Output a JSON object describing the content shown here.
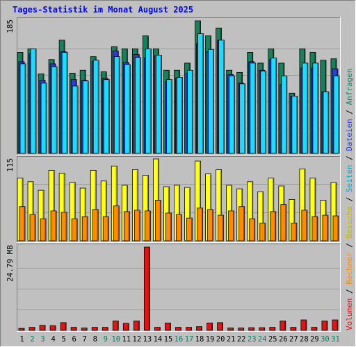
{
  "title": "Tages-Statistik im Monat August 2025",
  "colors": {
    "background": "#c0c0c0",
    "anfragen": "#1b7f5b",
    "dateien": "#2a3fd6",
    "seiten": "#22d9ff",
    "besuche": "#ffff22",
    "rechner": "#ff8c00",
    "volumen": "#e01515"
  },
  "chart_data": [
    {
      "type": "bar",
      "name": "top",
      "ymax_label": "185",
      "ylim": [
        0,
        185
      ],
      "categories": [
        "1",
        "2",
        "3",
        "4",
        "5",
        "6",
        "7",
        "8",
        "9",
        "10",
        "11",
        "12",
        "13",
        "14",
        "15",
        "16",
        "17",
        "18",
        "19",
        "20",
        "21",
        "22",
        "23",
        "24",
        "25",
        "26",
        "27",
        "28",
        "29",
        "30",
        "31"
      ],
      "weekend_days": [
        "2",
        "3",
        "9",
        "10",
        "16",
        "17",
        "23",
        "24",
        "30",
        "31"
      ],
      "series": [
        {
          "name": "Anfragen",
          "values": [
            141,
            146,
            111,
            131,
            158,
            112,
            116,
            135,
            114,
            149,
            146,
            146,
            164,
            146,
            116,
            116,
            126,
            185,
            164,
            175,
            116,
            113,
            141,
            126,
            146,
            126,
            84,
            146,
            141,
            130,
            132
          ]
        },
        {
          "name": "Dateien",
          "values": [
            128,
            139,
            102,
            125,
            142,
            103,
            102,
            128,
            105,
            143,
            127,
            138,
            133,
            136,
            100,
            105,
            112,
            153,
            142,
            158,
            110,
            98,
            128,
            116,
            131,
            96,
            80,
            119,
            119,
            86,
            118
          ]
        },
        {
          "name": "Seiten",
          "values": [
            125,
            146,
            98,
            121,
            141,
            94,
            101,
            130,
            103,
            135,
            124,
            134,
            146,
            137,
            103,
            106,
            116,
            167,
            145,
            158,
            108,
            97,
            126,
            115,
            133,
            108,
            80,
            126,
            126,
            86,
            108
          ]
        }
      ]
    },
    {
      "type": "bar",
      "name": "middle",
      "ymax_label": "115",
      "ylim": [
        0,
        115
      ],
      "categories": [
        "1",
        "2",
        "3",
        "4",
        "5",
        "6",
        "7",
        "8",
        "9",
        "10",
        "11",
        "12",
        "13",
        "14",
        "15",
        "16",
        "17",
        "18",
        "19",
        "20",
        "21",
        "22",
        "23",
        "24",
        "25",
        "26",
        "27",
        "28",
        "29",
        "30",
        "31"
      ],
      "series": [
        {
          "name": "Besuche",
          "values": [
            88,
            83,
            71,
            99,
            95,
            82,
            74,
            99,
            84,
            105,
            78,
            100,
            92,
            115,
            76,
            78,
            75,
            112,
            94,
            100,
            78,
            73,
            83,
            69,
            88,
            77,
            58,
            101,
            88,
            57,
            82
          ]
        },
        {
          "name": "Rechner",
          "values": [
            48,
            37,
            31,
            42,
            40,
            31,
            34,
            44,
            34,
            49,
            41,
            43,
            42,
            57,
            39,
            37,
            32,
            46,
            44,
            36,
            42,
            48,
            31,
            25,
            41,
            51,
            25,
            43,
            34,
            36,
            35
          ]
        }
      ]
    },
    {
      "type": "bar",
      "name": "bottom",
      "ymax_label": "24.79 MB",
      "ylim": [
        0,
        24.79
      ],
      "unit": "MB",
      "categories": [
        "1",
        "2",
        "3",
        "4",
        "5",
        "6",
        "7",
        "8",
        "9",
        "10",
        "11",
        "12",
        "13",
        "14",
        "15",
        "16",
        "17",
        "18",
        "19",
        "20",
        "21",
        "22",
        "23",
        "24",
        "25",
        "26",
        "27",
        "28",
        "29",
        "30",
        "31"
      ],
      "series": [
        {
          "name": "Volumen",
          "values": [
            0.6,
            0.9,
            1.5,
            1.4,
            2.3,
            0.9,
            0.7,
            0.9,
            0.9,
            2.8,
            2.1,
            2.8,
            24.79,
            0.9,
            2.2,
            0.9,
            0.9,
            1.1,
            2.2,
            2.3,
            0.7,
            0.7,
            0.8,
            0.8,
            0.9,
            2.8,
            0.9,
            3.1,
            0.9,
            2.8,
            3.1
          ]
        }
      ]
    }
  ],
  "legend": {
    "anfragen": "Anfragen",
    "dateien": "Dateien",
    "seiten": "Seiten",
    "besuche": "Besuche",
    "rechner": "Rechner",
    "volumen": "Volumen",
    "sep": " / "
  }
}
